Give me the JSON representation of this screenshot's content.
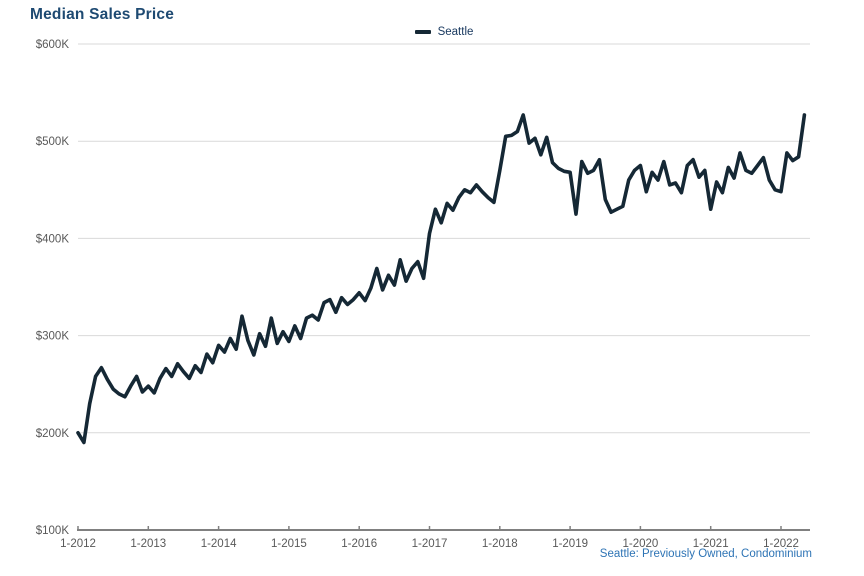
{
  "page": {
    "title": "Median Sales Price"
  },
  "legend": {
    "label": "Seattle"
  },
  "footnote": "Seattle: Previously Owned, Condominium",
  "colors": {
    "title_text": "#1e4a72",
    "legend_text": "#17375e",
    "series_line": "#152835",
    "gridline": "#d9d9d9",
    "axis_line": "#808080",
    "axis_label_text": "#595959",
    "footnote_text": "#2e74b5"
  },
  "chart_data": {
    "type": "line",
    "title": "Median Sales Price",
    "grid": "horizontal",
    "legend_position": "top-center",
    "ylim": [
      100,
      600
    ],
    "y_unit": "thousand USD",
    "y_tick_values": [
      100,
      200,
      300,
      400,
      500,
      600
    ],
    "y_tick_labels": [
      "$100K",
      "$200K",
      "$300K",
      "$400K",
      "$500K",
      "$600K"
    ],
    "x_tick_labels": [
      "1-2012",
      "1-2013",
      "1-2014",
      "1-2015",
      "1-2016",
      "1-2017",
      "1-2018",
      "1-2019",
      "1-2020",
      "1-2021",
      "1-2022"
    ],
    "series": [
      {
        "name": "Seattle",
        "start": "2012-01",
        "interval": "monthly",
        "values_unit": "thousand USD",
        "values": [
          200,
          190,
          230,
          258,
          267,
          255,
          245,
          240,
          237,
          248,
          258,
          242,
          248,
          241,
          256,
          266,
          258,
          271,
          263,
          256,
          269,
          262,
          281,
          272,
          290,
          283,
          297,
          286,
          320,
          295,
          280,
          302,
          289,
          318,
          292,
          304,
          294,
          310,
          297,
          318,
          321,
          316,
          334,
          337,
          324,
          339,
          332,
          337,
          344,
          336,
          349,
          369,
          347,
          362,
          352,
          378,
          356,
          369,
          376,
          359,
          405,
          430,
          416,
          436,
          429,
          442,
          450,
          447,
          455,
          448,
          442,
          437,
          470,
          505,
          506,
          510,
          527,
          498,
          503,
          486,
          504,
          478,
          472,
          469,
          468,
          425,
          479,
          467,
          470,
          481,
          440,
          427,
          430,
          433,
          460,
          470,
          475,
          448,
          468,
          460,
          479,
          455,
          457,
          447,
          475,
          481,
          463,
          470,
          430,
          458,
          447,
          473,
          462,
          488,
          470,
          467,
          475,
          483,
          460,
          450,
          448,
          488,
          480,
          484,
          527
        ]
      }
    ],
    "footnote": "Seattle: Previously Owned, Condominium"
  }
}
